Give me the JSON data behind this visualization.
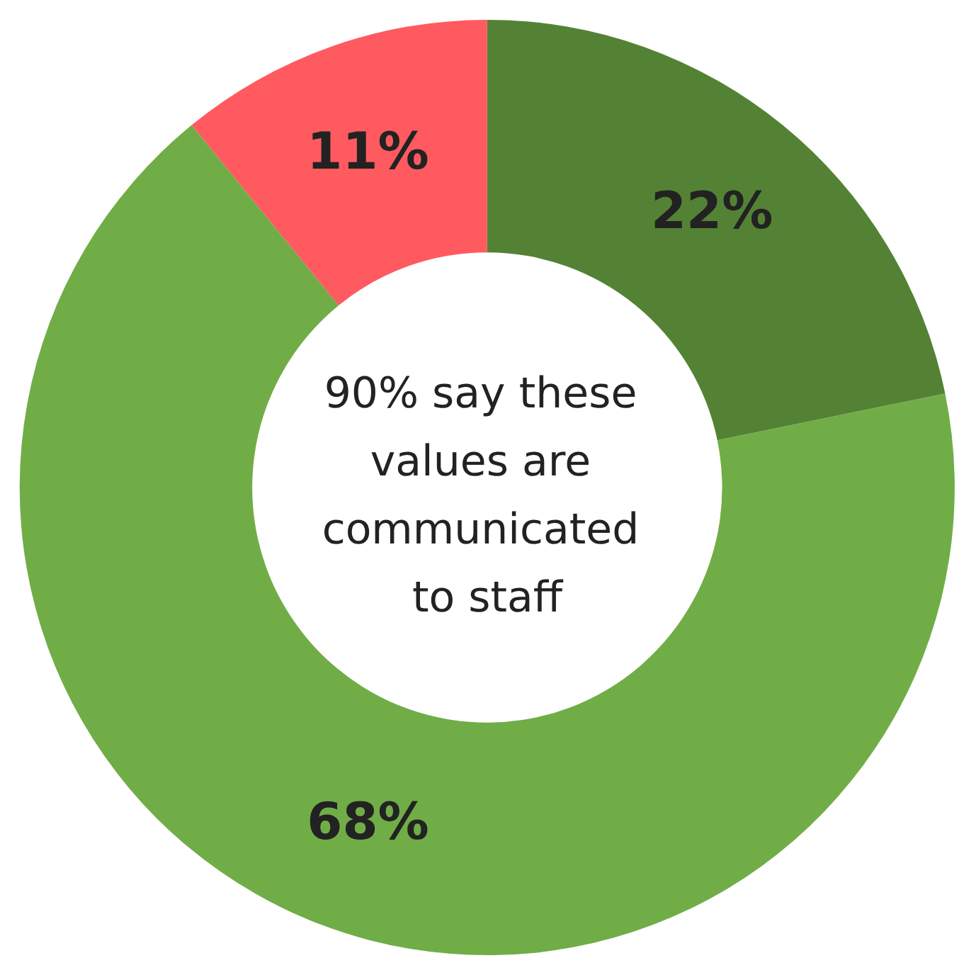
{
  "chart_data": {
    "type": "donut",
    "categories": [
      null,
      null,
      null
    ],
    "values": [
      22,
      68,
      11
    ],
    "colors": [
      "#548235",
      "#70ad47",
      "#ff5a5f"
    ],
    "value_labels": [
      "22%",
      "68%",
      "11%"
    ],
    "annotations": [
      "90% say these values are communicated to staff"
    ]
  }
}
